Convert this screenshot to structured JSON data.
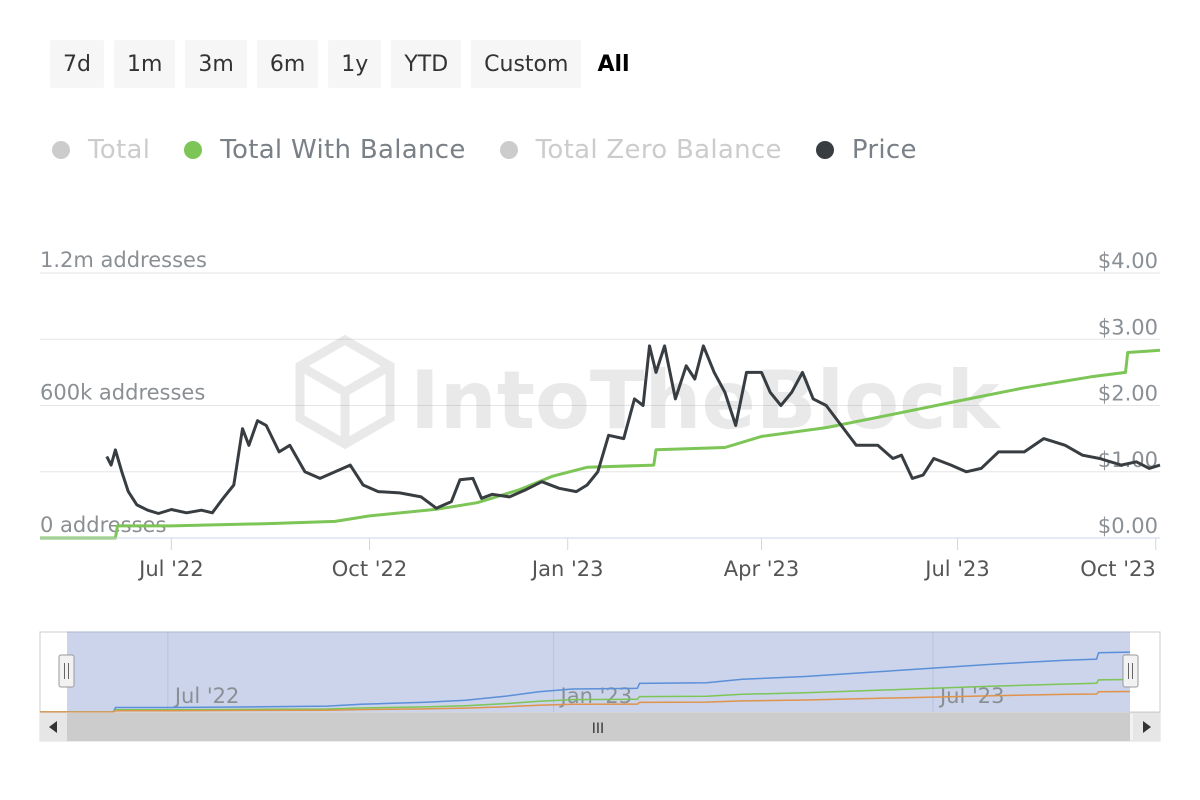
{
  "range_selector": {
    "buttons": [
      {
        "label": "7d",
        "active": false
      },
      {
        "label": "1m",
        "active": false
      },
      {
        "label": "3m",
        "active": false
      },
      {
        "label": "6m",
        "active": false
      },
      {
        "label": "1y",
        "active": false
      },
      {
        "label": "YTD",
        "active": false
      },
      {
        "label": "Custom",
        "active": false
      },
      {
        "label": "All",
        "active": true
      }
    ]
  },
  "legend": [
    {
      "label": "Total",
      "color": "#cccccc",
      "visible": false
    },
    {
      "label": "Total With Balance",
      "color": "#7cc556",
      "visible": true
    },
    {
      "label": "Total Zero Balance",
      "color": "#cccccc",
      "visible": false
    },
    {
      "label": "Price",
      "color": "#383d42",
      "visible": true
    }
  ],
  "watermark": "IntoTheBlock",
  "navigator": {
    "x_labels": [
      "Jul '22",
      "Jan '23",
      "Jul '23"
    ],
    "series_colors": [
      "#5b8fd8",
      "#7cc556",
      "#e0934b"
    ],
    "scroll_thumb": "III"
  },
  "chart_data": {
    "type": "line",
    "x_range": [
      "2022-05-01",
      "2023-10-03"
    ],
    "x_ticks": [
      {
        "date": "2022-07-01",
        "label": "Jul '22"
      },
      {
        "date": "2022-10-01",
        "label": "Oct '22"
      },
      {
        "date": "2023-01-01",
        "label": "Jan '23"
      },
      {
        "date": "2023-04-01",
        "label": "Apr '23"
      },
      {
        "date": "2023-07-01",
        "label": "Jul '23"
      },
      {
        "date": "2023-10-01",
        "label": "Oct '23"
      }
    ],
    "y_left": {
      "min": 0,
      "max": 1200000,
      "ticks": [
        {
          "value": 0,
          "label": "0 addresses"
        },
        {
          "value": 600000,
          "label": "600k addresses"
        },
        {
          "value": 1200000,
          "label": "1.2m addresses"
        }
      ]
    },
    "y_right": {
      "min": 0,
      "max": 4,
      "ticks": [
        {
          "value": 0,
          "label": "$0.00"
        },
        {
          "value": 1,
          "label": "$1.00"
        },
        {
          "value": 2,
          "label": "$2.00"
        },
        {
          "value": 3,
          "label": "$3.00"
        },
        {
          "value": 4,
          "label": "$4.00"
        }
      ]
    },
    "grid": true,
    "series": [
      {
        "name": "Total With Balance",
        "axis": "left",
        "color": "#7cc556",
        "points": [
          [
            "2022-05-01",
            0
          ],
          [
            "2022-06-05",
            0
          ],
          [
            "2022-06-06",
            55000
          ],
          [
            "2022-07-01",
            55000
          ],
          [
            "2022-08-15",
            65000
          ],
          [
            "2022-09-15",
            75000
          ],
          [
            "2022-10-01",
            100000
          ],
          [
            "2022-11-01",
            130000
          ],
          [
            "2022-11-20",
            160000
          ],
          [
            "2022-12-10",
            220000
          ],
          [
            "2022-12-25",
            280000
          ],
          [
            "2023-01-10",
            320000
          ],
          [
            "2023-02-10",
            330000
          ],
          [
            "2023-02-11",
            400000
          ],
          [
            "2023-03-15",
            410000
          ],
          [
            "2023-04-01",
            460000
          ],
          [
            "2023-05-01",
            500000
          ],
          [
            "2023-06-01",
            560000
          ],
          [
            "2023-07-01",
            620000
          ],
          [
            "2023-08-01",
            680000
          ],
          [
            "2023-09-01",
            730000
          ],
          [
            "2023-09-17",
            750000
          ],
          [
            "2023-09-18",
            840000
          ],
          [
            "2023-10-03",
            850000
          ]
        ]
      },
      {
        "name": "Price",
        "axis": "right",
        "color": "#383d42",
        "points": [
          [
            "2022-06-01",
            1.23
          ],
          [
            "2022-06-03",
            1.1
          ],
          [
            "2022-06-05",
            1.33
          ],
          [
            "2022-06-08",
            1.0
          ],
          [
            "2022-06-11",
            0.7
          ],
          [
            "2022-06-15",
            0.5
          ],
          [
            "2022-06-20",
            0.42
          ],
          [
            "2022-06-25",
            0.37
          ],
          [
            "2022-07-01",
            0.43
          ],
          [
            "2022-07-08",
            0.38
          ],
          [
            "2022-07-15",
            0.42
          ],
          [
            "2022-07-20",
            0.38
          ],
          [
            "2022-07-25",
            0.6
          ],
          [
            "2022-07-30",
            0.8
          ],
          [
            "2022-08-03",
            1.65
          ],
          [
            "2022-08-06",
            1.4
          ],
          [
            "2022-08-10",
            1.77
          ],
          [
            "2022-08-14",
            1.7
          ],
          [
            "2022-08-20",
            1.3
          ],
          [
            "2022-08-25",
            1.4
          ],
          [
            "2022-09-01",
            1.0
          ],
          [
            "2022-09-08",
            0.9
          ],
          [
            "2022-09-15",
            1.0
          ],
          [
            "2022-09-22",
            1.1
          ],
          [
            "2022-09-28",
            0.8
          ],
          [
            "2022-10-05",
            0.7
          ],
          [
            "2022-10-15",
            0.68
          ],
          [
            "2022-10-25",
            0.62
          ],
          [
            "2022-11-01",
            0.45
          ],
          [
            "2022-11-08",
            0.55
          ],
          [
            "2022-11-12",
            0.88
          ],
          [
            "2022-11-18",
            0.9
          ],
          [
            "2022-11-22",
            0.6
          ],
          [
            "2022-11-27",
            0.66
          ],
          [
            "2022-12-05",
            0.62
          ],
          [
            "2022-12-12",
            0.72
          ],
          [
            "2022-12-20",
            0.85
          ],
          [
            "2022-12-28",
            0.75
          ],
          [
            "2023-01-05",
            0.7
          ],
          [
            "2023-01-10",
            0.8
          ],
          [
            "2023-01-15",
            1.0
          ],
          [
            "2023-01-20",
            1.55
          ],
          [
            "2023-01-27",
            1.5
          ],
          [
            "2023-02-01",
            2.1
          ],
          [
            "2023-02-05",
            2.0
          ],
          [
            "2023-02-08",
            2.9
          ],
          [
            "2023-02-11",
            2.5
          ],
          [
            "2023-02-15",
            2.9
          ],
          [
            "2023-02-20",
            2.1
          ],
          [
            "2023-02-25",
            2.6
          ],
          [
            "2023-03-01",
            2.4
          ],
          [
            "2023-03-05",
            2.9
          ],
          [
            "2023-03-10",
            2.5
          ],
          [
            "2023-03-15",
            2.2
          ],
          [
            "2023-03-20",
            1.7
          ],
          [
            "2023-03-25",
            2.5
          ],
          [
            "2023-04-01",
            2.5
          ],
          [
            "2023-04-05",
            2.2
          ],
          [
            "2023-04-10",
            2.0
          ],
          [
            "2023-04-15",
            2.2
          ],
          [
            "2023-04-20",
            2.5
          ],
          [
            "2023-04-25",
            2.1
          ],
          [
            "2023-05-01",
            2.0
          ],
          [
            "2023-05-08",
            1.7
          ],
          [
            "2023-05-15",
            1.4
          ],
          [
            "2023-05-25",
            1.4
          ],
          [
            "2023-06-01",
            1.2
          ],
          [
            "2023-06-05",
            1.25
          ],
          [
            "2023-06-10",
            0.9
          ],
          [
            "2023-06-15",
            0.95
          ],
          [
            "2023-06-20",
            1.2
          ],
          [
            "2023-06-28",
            1.1
          ],
          [
            "2023-07-05",
            1.0
          ],
          [
            "2023-07-12",
            1.05
          ],
          [
            "2023-07-20",
            1.3
          ],
          [
            "2023-08-01",
            1.3
          ],
          [
            "2023-08-10",
            1.5
          ],
          [
            "2023-08-20",
            1.4
          ],
          [
            "2023-08-28",
            1.25
          ],
          [
            "2023-09-05",
            1.2
          ],
          [
            "2023-09-15",
            1.1
          ],
          [
            "2023-09-22",
            1.15
          ],
          [
            "2023-09-28",
            1.05
          ],
          [
            "2023-10-03",
            1.1
          ]
        ]
      }
    ]
  }
}
